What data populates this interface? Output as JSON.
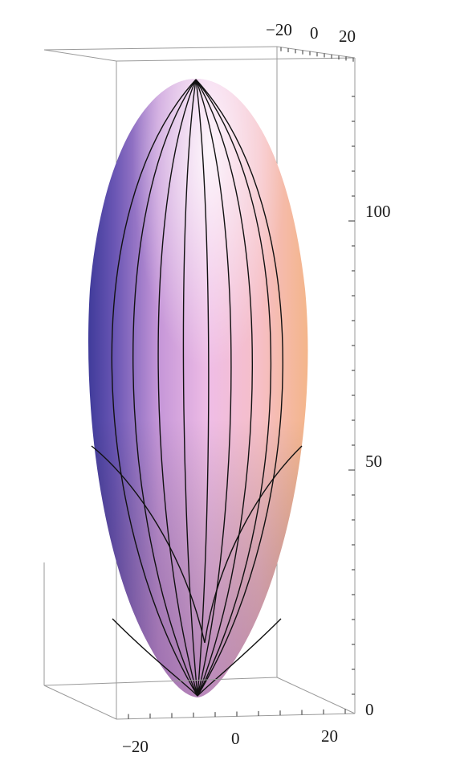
{
  "figure": {
    "type": "3d-surface-plot",
    "surface": "elongated ellipsoid (prolate spheroid) with meridian mesh lines",
    "colors": {
      "shade_left": "#5a4aa8",
      "shade_mid": "#e7b6e6",
      "shade_right": "#f8c39c",
      "highlight": "#fbeaf6",
      "mesh": "#111111",
      "box": "#9a9a9a"
    }
  },
  "axes": {
    "top_x_ticks": [
      "−20",
      "0",
      "20"
    ],
    "bottom_x_ticks": [
      "−20",
      "0",
      "20"
    ],
    "z_ticks": [
      "0",
      "50",
      "100"
    ],
    "z_range": [
      0,
      125
    ],
    "x_range": [
      -25,
      25
    ]
  }
}
